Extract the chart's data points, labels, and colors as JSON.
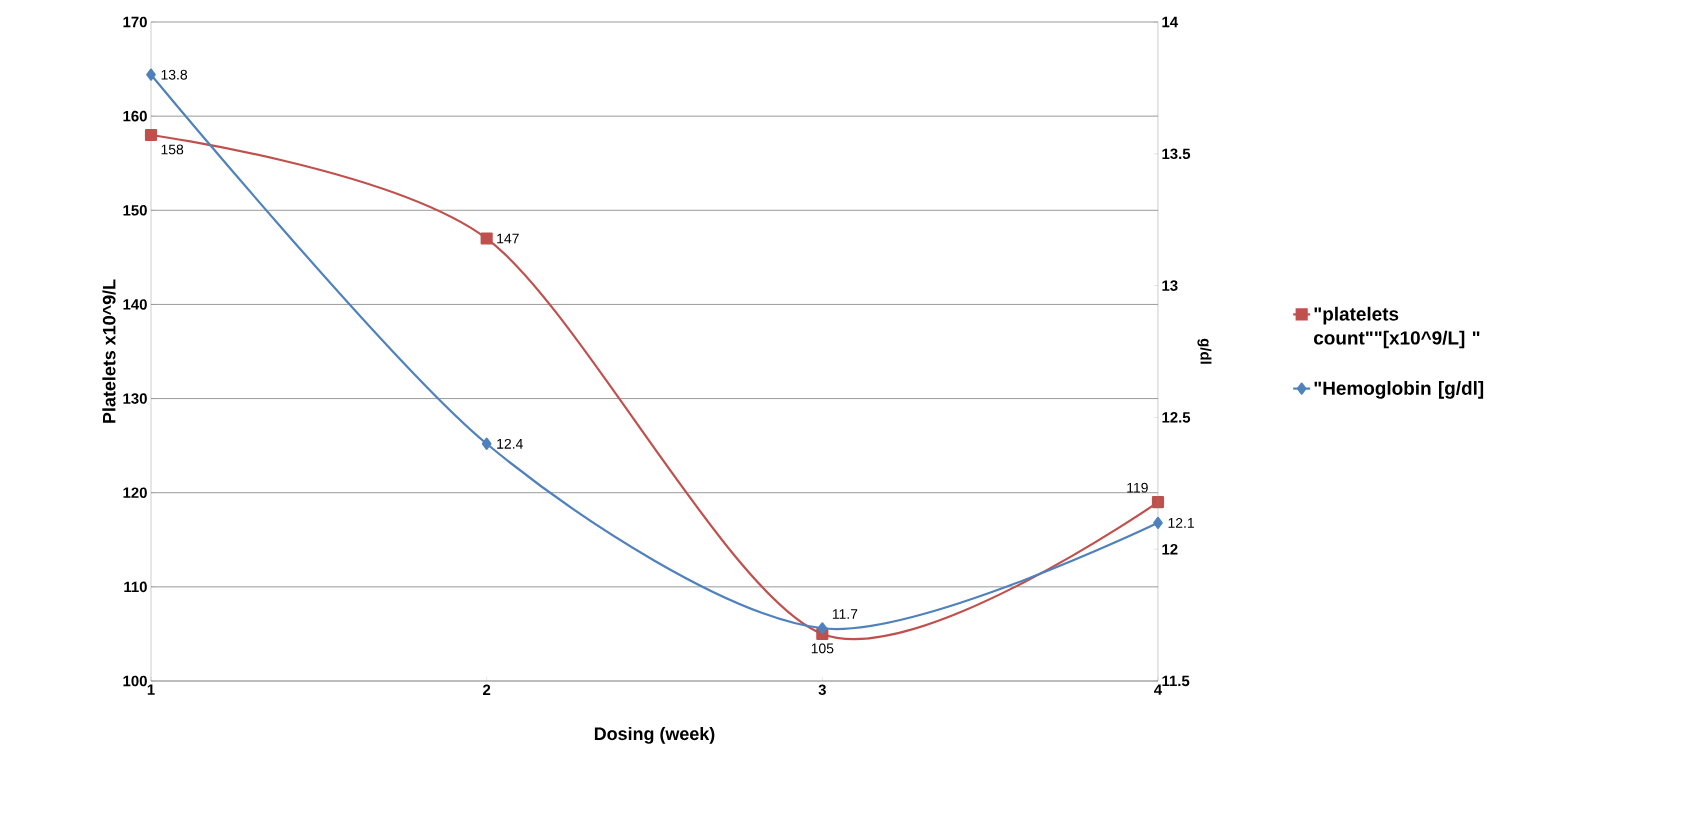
{
  "chart_data": {
    "type": "line",
    "xlabel": "Dosing (week)",
    "ylabel": "Platelets x10^9/L",
    "y2label": "g/dl",
    "x": [
      1,
      2,
      3,
      4
    ],
    "xlim": [
      1,
      4
    ],
    "xticks": [
      1,
      2,
      3,
      4
    ],
    "ylim": [
      100,
      170
    ],
    "yticks": [
      100,
      110,
      120,
      130,
      140,
      150,
      160,
      170
    ],
    "y2lim": [
      11.5,
      14
    ],
    "y2ticks": [
      11.5,
      12,
      12.5,
      13,
      13.5,
      14
    ],
    "series": [
      {
        "name": "\"platelets count\"\"[x10^9/L] \"",
        "color": "#c0504d",
        "values": [
          158,
          147,
          105,
          119
        ],
        "marker": "square"
      },
      {
        "name": "\"Hemoglobin [g/dl]",
        "color": "#4f81bd",
        "values": [
          13.8,
          12.4,
          11.7,
          12.1
        ],
        "marker": "diamond",
        "axis": "y2"
      }
    ],
    "grid": "y",
    "legend": "right",
    "data_labels": true,
    "line_style": "solid"
  }
}
